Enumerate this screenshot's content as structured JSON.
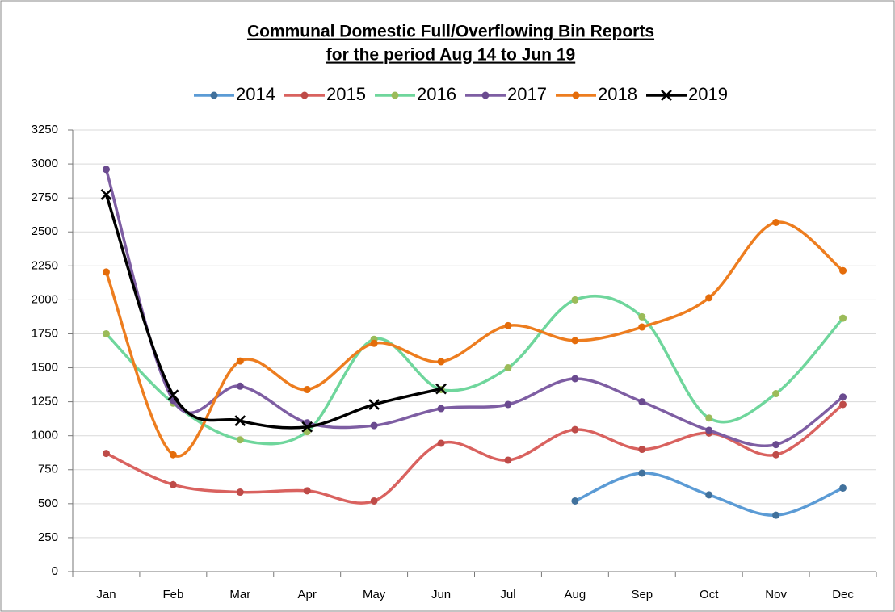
{
  "chart_data": {
    "type": "line",
    "title": "Communal Domestic Full/Overflowing Bin Reports",
    "subtitle": "for the period Aug 14 to Jun 19",
    "categories": [
      "Jan",
      "Feb",
      "Mar",
      "Apr",
      "May",
      "Jun",
      "Jul",
      "Aug",
      "Sep",
      "Oct",
      "Nov",
      "Dec"
    ],
    "ylim": [
      0,
      3250
    ],
    "yticks": [
      0,
      250,
      500,
      750,
      1000,
      1250,
      1500,
      1750,
      2000,
      2250,
      2500,
      2750,
      3000,
      3250
    ],
    "grid": true,
    "smooth": true,
    "legend": "top",
    "series": [
      {
        "name": "2014",
        "color": "#5b9bd5",
        "marker_color": "#41719c",
        "marker": "circle",
        "values": [
          null,
          null,
          null,
          null,
          null,
          null,
          null,
          520,
          725,
          565,
          415,
          615
        ]
      },
      {
        "name": "2015",
        "color": "#d9625f",
        "marker_color": "#be4b48",
        "marker": "circle",
        "values": [
          870,
          640,
          585,
          595,
          520,
          945,
          820,
          1045,
          900,
          1020,
          860,
          1230
        ]
      },
      {
        "name": "2016",
        "color": "#6fd69c",
        "marker_color": "#9bbb59",
        "marker": "circle",
        "values": [
          1750,
          1240,
          970,
          1030,
          1710,
          1340,
          1500,
          2000,
          1875,
          1130,
          1310,
          1865
        ]
      },
      {
        "name": "2017",
        "color": "#7e5ea3",
        "marker_color": "#6a4a8f",
        "marker": "circle",
        "values": [
          2960,
          1260,
          1365,
          1095,
          1075,
          1200,
          1230,
          1420,
          1250,
          1040,
          935,
          1285
        ]
      },
      {
        "name": "2018",
        "color": "#ed7d1f",
        "marker_color": "#e46c0a",
        "marker": "circle",
        "values": [
          2205,
          860,
          1550,
          1340,
          1680,
          1545,
          1810,
          1700,
          1800,
          2015,
          2570,
          2215
        ]
      },
      {
        "name": "2019",
        "color": "#000000",
        "marker_color": "#000000",
        "marker": "x",
        "values": [
          2775,
          1300,
          1110,
          1065,
          1230,
          1345,
          null,
          null,
          null,
          null,
          null,
          null
        ]
      }
    ]
  }
}
